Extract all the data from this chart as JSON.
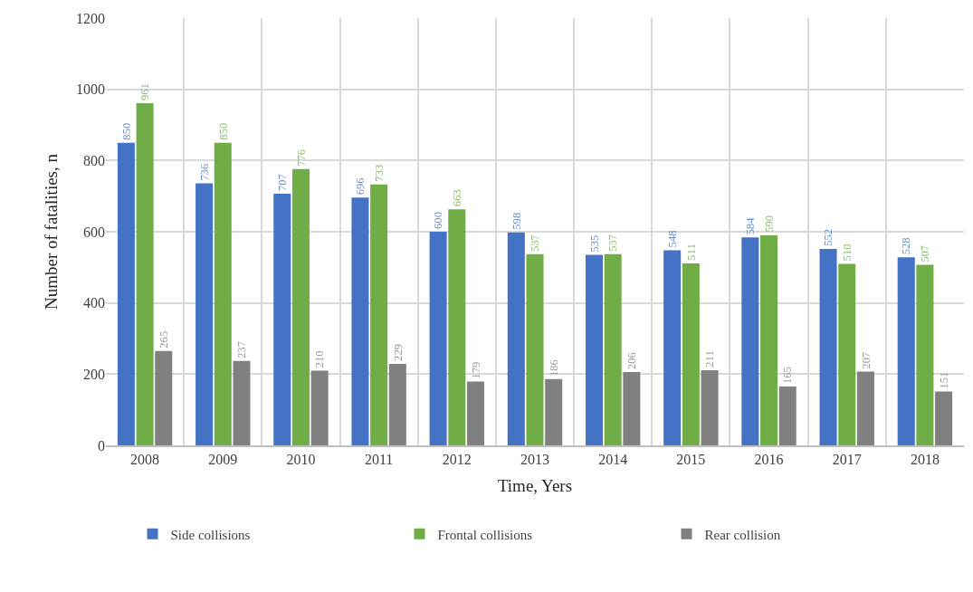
{
  "chart_data": {
    "type": "bar",
    "xlabel": "Time, Yers",
    "ylabel": "Number of fatalities, n",
    "categories": [
      "2008",
      "2009",
      "2010",
      "2011",
      "2012",
      "2013",
      "2014",
      "2015",
      "2016",
      "2017",
      "2018"
    ],
    "series": [
      {
        "name": "Side collisions",
        "color": "#4472c4",
        "values": [
          850,
          736,
          707,
          696,
          600,
          598,
          535,
          548,
          584,
          552,
          528
        ]
      },
      {
        "name": "Frontal collisions",
        "color": "#70ad47",
        "values": [
          961,
          850,
          776,
          733,
          663,
          537,
          537,
          511,
          590,
          510,
          507
        ]
      },
      {
        "name": "Rear collision",
        "color": "#808080",
        "values": [
          265,
          237,
          210,
          229,
          179,
          186,
          206,
          211,
          165,
          207,
          151
        ]
      }
    ],
    "ylim": [
      0,
      1200
    ],
    "yticks": [
      0,
      200,
      400,
      600,
      800,
      1000,
      1200
    ],
    "grid": true,
    "legend": "bottom",
    "data_labels": true
  }
}
